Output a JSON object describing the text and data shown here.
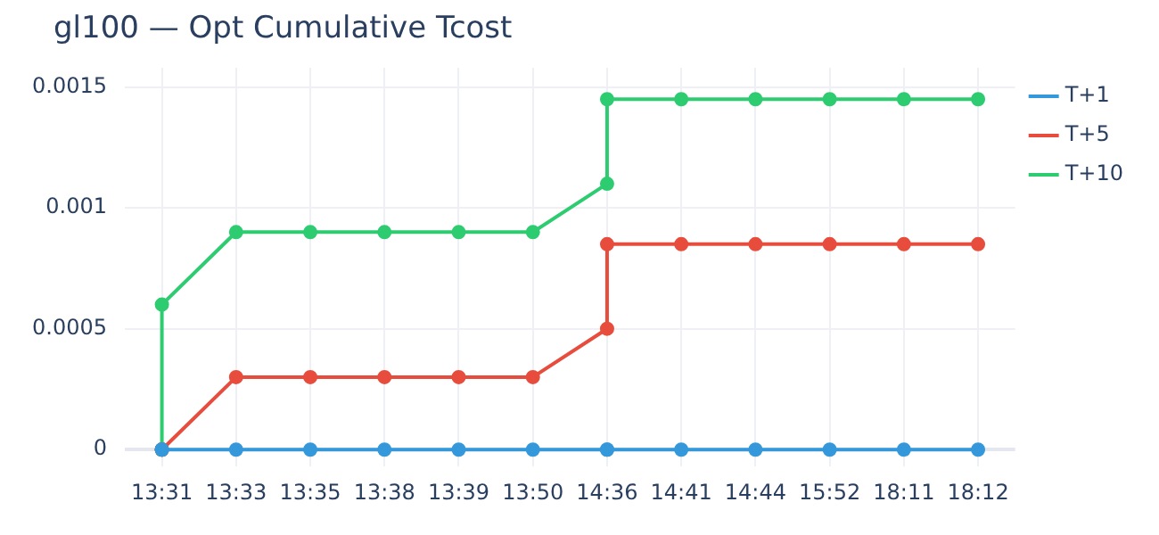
{
  "chart_data": {
    "type": "line",
    "title": "gl100 — Opt Cumulative Tcost",
    "categories": [
      "13:31",
      "13:33",
      "13:35",
      "13:38",
      "13:39",
      "13:50",
      "14:36",
      "14:41",
      "14:44",
      "15:52",
      "18:11",
      "18:12"
    ],
    "series": [
      {
        "name": "T+1",
        "color": "#3498db",
        "x": [
          "13:31",
          "13:31",
          "13:33",
          "13:35",
          "13:38",
          "13:39",
          "13:50",
          "14:36",
          "14:36",
          "14:41",
          "14:44",
          "15:52",
          "18:11",
          "18:12"
        ],
        "values": [
          0,
          0,
          0,
          0,
          0,
          0,
          0,
          0,
          0,
          0,
          0,
          0,
          0,
          0
        ]
      },
      {
        "name": "T+5",
        "color": "#e74c3c",
        "x": [
          "13:31",
          "13:31",
          "13:33",
          "13:35",
          "13:38",
          "13:39",
          "13:50",
          "14:36",
          "14:36",
          "14:41",
          "14:44",
          "15:52",
          "18:11",
          "18:12"
        ],
        "values": [
          0,
          0,
          0.0003,
          0.0003,
          0.0003,
          0.0003,
          0.0003,
          0.0005,
          0.00085,
          0.00085,
          0.00085,
          0.00085,
          0.00085,
          0.00085
        ]
      },
      {
        "name": "T+10",
        "color": "#2ecc71",
        "x": [
          "13:31",
          "13:31",
          "13:33",
          "13:35",
          "13:38",
          "13:39",
          "13:50",
          "14:36",
          "14:36",
          "14:41",
          "14:44",
          "15:52",
          "18:11",
          "18:12"
        ],
        "values": [
          0,
          0.0006,
          0.0009,
          0.0009,
          0.0009,
          0.0009,
          0.0009,
          0.0011,
          0.00145,
          0.00145,
          0.00145,
          0.00145,
          0.00145,
          0.00145
        ]
      }
    ],
    "ylim": [
      -7e-05,
      0.00158
    ],
    "yticks": [
      0,
      0.0005,
      0.001,
      0.0015
    ],
    "grid": true,
    "legend": "top right",
    "marker": "circle",
    "line_style": "solid"
  }
}
